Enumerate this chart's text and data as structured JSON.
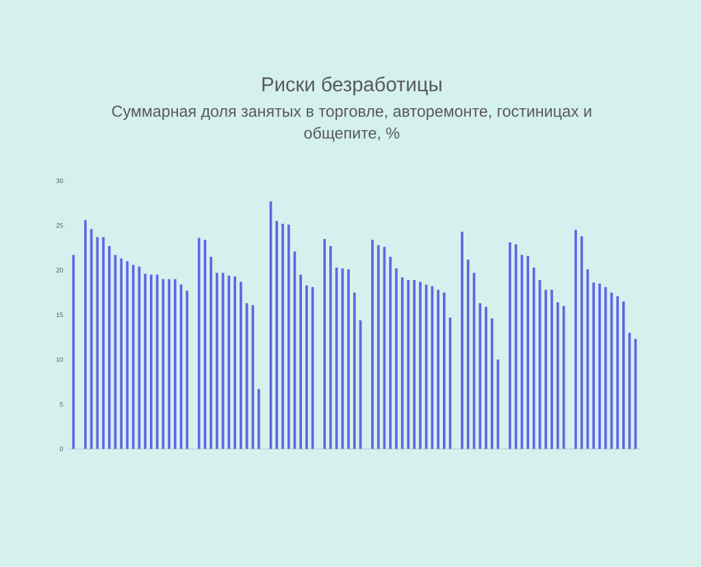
{
  "chart_data": {
    "type": "bar",
    "title": "Риски безработицы",
    "subtitle": "Суммарная доля занятых в торговле, авторемонте, гостиницах и общепите, %",
    "categories": [
      null,
      null,
      null,
      null,
      null,
      null,
      null,
      null,
      null,
      null,
      null,
      null,
      null,
      null,
      null,
      null,
      null,
      null,
      null,
      null,
      null,
      null,
      null,
      null,
      null,
      null,
      null,
      null,
      null,
      null,
      null,
      null,
      null,
      null,
      null,
      null,
      null,
      null,
      null,
      null,
      null,
      null,
      null,
      null,
      null,
      null,
      null,
      null,
      null,
      null,
      null,
      null,
      null,
      null,
      null,
      null,
      null,
      null,
      null,
      null,
      null,
      null,
      null,
      null,
      null,
      null,
      null,
      null,
      null,
      null,
      null,
      null,
      null,
      null,
      null,
      null,
      null,
      null,
      null,
      null,
      null,
      null,
      null,
      null,
      null,
      null,
      null,
      null,
      null,
      null,
      null,
      null,
      null,
      null,
      null
    ],
    "values": [
      21.7,
      null,
      25.6,
      24.6,
      23.7,
      23.7,
      22.7,
      21.7,
      21.3,
      21.0,
      20.6,
      20.4,
      19.6,
      19.5,
      19.5,
      19.0,
      19.0,
      19.0,
      18.4,
      17.7,
      null,
      23.6,
      23.4,
      21.5,
      19.7,
      19.7,
      19.4,
      19.3,
      18.7,
      16.3,
      16.1,
      6.7,
      null,
      27.7,
      25.5,
      25.2,
      25.1,
      22.1,
      19.5,
      18.3,
      18.1,
      null,
      23.5,
      22.7,
      20.3,
      20.2,
      20.1,
      17.5,
      14.4,
      null,
      23.4,
      22.8,
      22.6,
      21.5,
      20.2,
      19.2,
      18.9,
      18.9,
      18.7,
      18.4,
      18.2,
      17.8,
      17.5,
      14.7,
      null,
      24.3,
      21.2,
      19.7,
      16.3,
      15.9,
      14.6,
      10.0,
      null,
      23.1,
      22.9,
      21.7,
      21.6,
      20.3,
      18.9,
      17.8,
      17.8,
      16.4,
      16.0,
      null,
      24.5,
      23.8,
      20.1,
      18.6,
      18.5,
      18.1,
      17.5,
      17.1,
      16.5,
      13.0,
      12.3
    ],
    "color": "#5f66e2",
    "ylim": [
      0,
      30
    ],
    "yticks": [
      0,
      5,
      10,
      15,
      20,
      25,
      30
    ]
  }
}
